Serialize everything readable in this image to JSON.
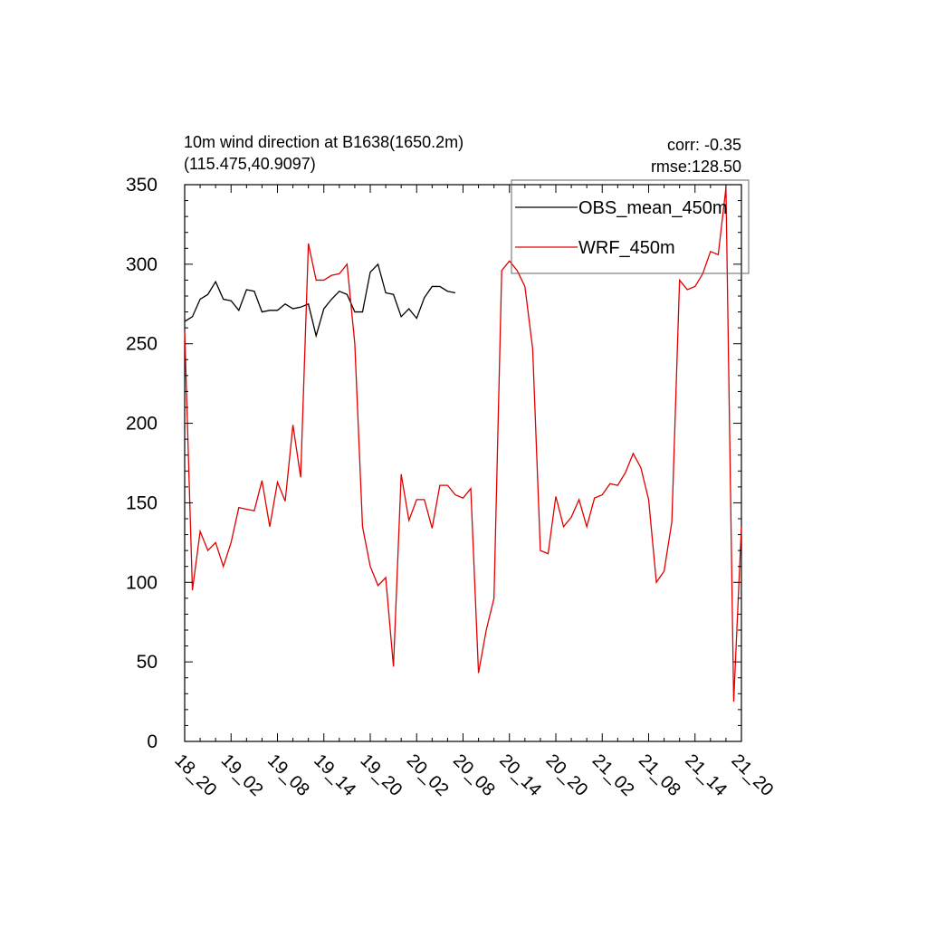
{
  "chart_data": {
    "type": "line",
    "title_line1": "10m wind direction at B1638(1650.2m)",
    "title_line2": "(115.475,40.9097)",
    "stats": {
      "corr": "corr: -0.35",
      "rmse": "rmse:128.50"
    },
    "xlabel": "",
    "ylabel": "",
    "ylim": [
      0,
      350
    ],
    "yticks": [
      0,
      50,
      100,
      150,
      200,
      250,
      300,
      350
    ],
    "ytick_labels": [
      "0",
      "50",
      "100",
      "150",
      "200",
      "250",
      "300",
      "350"
    ],
    "xlim": [
      0,
      72
    ],
    "xticks": [
      0,
      6,
      12,
      18,
      24,
      30,
      36,
      42,
      48,
      54,
      60,
      66,
      72
    ],
    "xtick_labels": [
      "18_20",
      "19_02",
      "19_08",
      "19_14",
      "19_20",
      "20_02",
      "20_08",
      "20_14",
      "20_20",
      "21_02",
      "21_08",
      "21_14",
      "21_20"
    ],
    "grid": false,
    "legend_position": "top-right",
    "series": [
      {
        "name": "OBS_mean_450m",
        "color": "#000000",
        "x": [
          0,
          1,
          2,
          3,
          4,
          5,
          6,
          7,
          8,
          9,
          10,
          11,
          12,
          13,
          14,
          15,
          16,
          17,
          18,
          19,
          20,
          21,
          22,
          23,
          24,
          25,
          26,
          27,
          28,
          29,
          30,
          31,
          32,
          33,
          34,
          35
        ],
        "values": [
          264,
          267,
          278,
          281,
          289,
          278,
          277,
          271,
          284,
          283,
          270,
          271,
          271,
          275,
          272,
          273,
          275,
          255,
          272,
          278,
          283,
          281,
          270,
          270,
          295,
          300,
          282,
          281,
          267,
          272,
          266,
          279,
          286,
          286,
          283,
          282
        ]
      },
      {
        "name": "WRF_450m",
        "color": "#e00000",
        "x": [
          0,
          1,
          2,
          3,
          4,
          5,
          6,
          7,
          8,
          9,
          10,
          11,
          12,
          13,
          14,
          15,
          16,
          17,
          18,
          19,
          20,
          21,
          22,
          23,
          24,
          25,
          26,
          27,
          28,
          29,
          30,
          31,
          32,
          33,
          34,
          35,
          36,
          37,
          38,
          39,
          40,
          41,
          42,
          43,
          44,
          45,
          46,
          47,
          48,
          49,
          50,
          51,
          52,
          53,
          54,
          55,
          56,
          57,
          58,
          59,
          60,
          61,
          62,
          63,
          64,
          65,
          66,
          67,
          68,
          69,
          70,
          71,
          72
        ],
        "values": [
          258,
          95,
          132,
          120,
          125,
          110,
          125,
          147,
          146,
          145,
          164,
          135,
          163,
          151,
          199,
          166,
          313,
          290,
          290,
          293,
          294,
          300,
          250,
          135,
          110,
          98,
          103,
          47,
          168,
          139,
          152,
          152,
          134,
          161,
          161,
          155,
          153,
          159,
          43,
          70,
          90,
          296,
          302,
          296,
          286,
          247,
          120,
          118,
          154,
          135,
          141,
          152,
          135,
          153,
          155,
          162,
          161,
          169,
          181,
          172,
          152,
          100,
          107,
          138,
          290,
          284,
          286,
          294,
          308,
          306,
          348,
          25,
          135
        ]
      }
    ]
  }
}
